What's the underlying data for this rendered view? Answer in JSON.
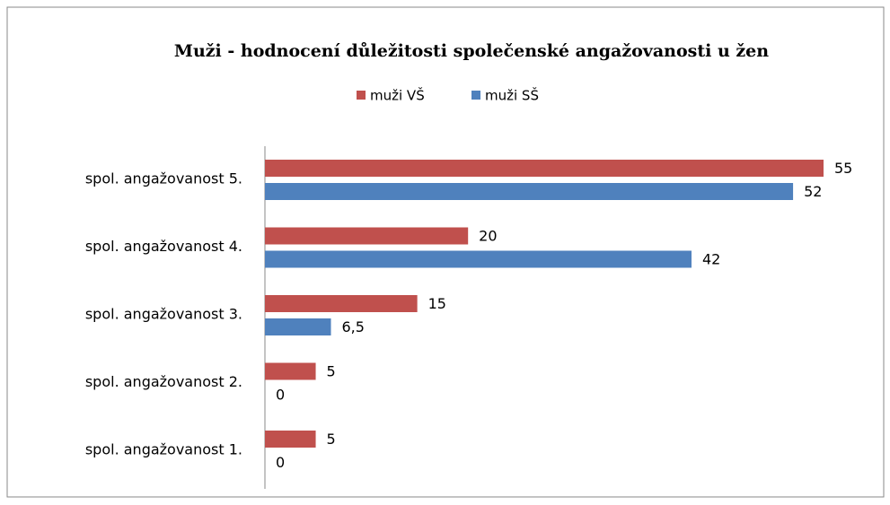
{
  "chart_data": {
    "type": "bar",
    "orientation": "horizontal",
    "title": "Muži - hodnocení důležitosti společenské angažovanosti u žen",
    "categories": [
      "spol. angažovanost 5.",
      "spol. angažovanost 4.",
      "spol. angažovanost 3.",
      "spol. angažovanost 2.",
      "spol. angažovanost 1."
    ],
    "series": [
      {
        "name": "muži VŠ",
        "color": "#c0504d",
        "values": [
          55,
          20,
          15,
          5,
          5
        ]
      },
      {
        "name": "muži SŠ",
        "color": "#4f81bd",
        "values": [
          52,
          42,
          6.5,
          0,
          0
        ],
        "value_labels": [
          "52",
          "42",
          "6,5",
          "0",
          "0"
        ]
      }
    ],
    "xlim": [
      0,
      55
    ],
    "legend": "top"
  }
}
